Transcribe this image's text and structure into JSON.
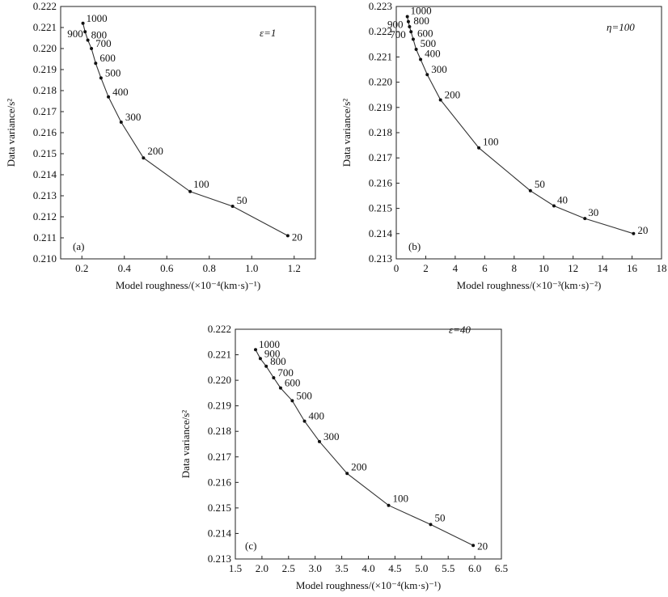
{
  "chart_data": [
    {
      "type": "line",
      "panel_label": "(a)",
      "parameter_label": "ε=1",
      "xlabel": "Model roughness/(×10⁻⁴(km·s)⁻¹)",
      "ylabel": "Data variance/s²",
      "xlim": [
        0.1,
        1.3
      ],
      "ylim": [
        0.21,
        0.222
      ],
      "xticks": [
        "0.2",
        "0.4",
        "0.6",
        "0.8",
        "1.0",
        "1.2"
      ],
      "yticks": [
        "0.210",
        "0.211",
        "0.212",
        "0.213",
        "0.214",
        "0.215",
        "0.216",
        "0.217",
        "0.218",
        "0.219",
        "0.220",
        "0.221",
        "0.222"
      ],
      "grid": false,
      "points": [
        {
          "label": "1000",
          "x": 0.205,
          "y": 0.2212
        },
        {
          "label": "900",
          "x": 0.215,
          "y": 0.2208
        },
        {
          "label": "800",
          "x": 0.228,
          "y": 0.2204
        },
        {
          "label": "700",
          "x": 0.245,
          "y": 0.22
        },
        {
          "label": "600",
          "x": 0.265,
          "y": 0.2193
        },
        {
          "label": "500",
          "x": 0.29,
          "y": 0.2186
        },
        {
          "label": "400",
          "x": 0.325,
          "y": 0.2177
        },
        {
          "label": "300",
          "x": 0.385,
          "y": 0.2165
        },
        {
          "label": "200",
          "x": 0.49,
          "y": 0.2148
        },
        {
          "label": "100",
          "x": 0.71,
          "y": 0.2132
        },
        {
          "label": "50",
          "x": 0.91,
          "y": 0.2125
        },
        {
          "label": "20",
          "x": 1.17,
          "y": 0.2111
        }
      ]
    },
    {
      "type": "line",
      "panel_label": "(b)",
      "parameter_label": "η=100",
      "xlabel": "Model roughness/(×10⁻³(km·s)⁻²)",
      "ylabel": "Data variance/s²",
      "xlim": [
        0,
        18
      ],
      "ylim": [
        0.213,
        0.223
      ],
      "xticks": [
        "0",
        "2",
        "4",
        "6",
        "8",
        "10",
        "12",
        "14",
        "16",
        "18"
      ],
      "yticks": [
        "0.213",
        "0.214",
        "0.215",
        "0.216",
        "0.217",
        "0.218",
        "0.219",
        "0.220",
        "0.221",
        "0.222",
        "0.223"
      ],
      "grid": false,
      "points": [
        {
          "label": "1000",
          "x": 0.75,
          "y": 0.2226
        },
        {
          "label": "900",
          "x": 0.82,
          "y": 0.2224
        },
        {
          "label": "800",
          "x": 0.9,
          "y": 0.2222
        },
        {
          "label": "700",
          "x": 1.0,
          "y": 0.222
        },
        {
          "label": "600",
          "x": 1.15,
          "y": 0.2217
        },
        {
          "label": "500",
          "x": 1.35,
          "y": 0.2213
        },
        {
          "label": "400",
          "x": 1.65,
          "y": 0.2209
        },
        {
          "label": "300",
          "x": 2.1,
          "y": 0.2203
        },
        {
          "label": "200",
          "x": 3.0,
          "y": 0.2193
        },
        {
          "label": "100",
          "x": 5.6,
          "y": 0.2174
        },
        {
          "label": "50",
          "x": 9.1,
          "y": 0.2157
        },
        {
          "label": "40",
          "x": 10.7,
          "y": 0.2151
        },
        {
          "label": "30",
          "x": 12.8,
          "y": 0.2146
        },
        {
          "label": "20",
          "x": 16.1,
          "y": 0.214
        }
      ]
    },
    {
      "type": "line",
      "panel_label": "(c)",
      "parameter_label": "ε=40",
      "xlabel": "Model roughness/(×10⁻⁴(km·s)⁻¹)",
      "ylabel": "Data variance/s²",
      "xlim": [
        1.5,
        6.5
      ],
      "ylim": [
        0.213,
        0.222
      ],
      "xticks": [
        "1.5",
        "2.0",
        "2.5",
        "3.0",
        "3.5",
        "4.0",
        "4.5",
        "5.0",
        "5.5",
        "6.0",
        "6.5"
      ],
      "yticks": [
        "0.213",
        "0.214",
        "0.215",
        "0.216",
        "0.217",
        "0.218",
        "0.219",
        "0.220",
        "0.221",
        "0.222"
      ],
      "grid": false,
      "points": [
        {
          "label": "1000",
          "x": 1.88,
          "y": 0.2212
        },
        {
          "label": "900",
          "x": 1.97,
          "y": 0.22085
        },
        {
          "label": "800",
          "x": 2.08,
          "y": 0.22055
        },
        {
          "label": "700",
          "x": 2.22,
          "y": 0.2201
        },
        {
          "label": "600",
          "x": 2.35,
          "y": 0.2197
        },
        {
          "label": "500",
          "x": 2.57,
          "y": 0.2192
        },
        {
          "label": "400",
          "x": 2.8,
          "y": 0.2184
        },
        {
          "label": "300",
          "x": 3.08,
          "y": 0.2176
        },
        {
          "label": "200",
          "x": 3.6,
          "y": 0.21635
        },
        {
          "label": "100",
          "x": 4.38,
          "y": 0.2151
        },
        {
          "label": "50",
          "x": 5.17,
          "y": 0.21435
        },
        {
          "label": "20",
          "x": 5.97,
          "y": 0.21353
        }
      ]
    }
  ]
}
